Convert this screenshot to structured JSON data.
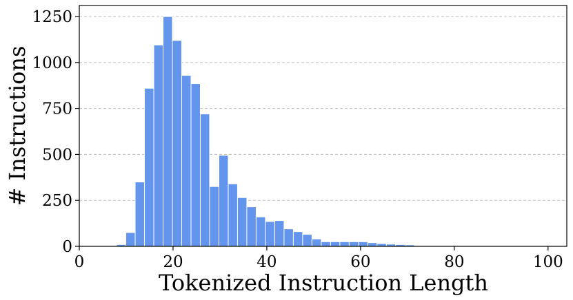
{
  "chart_data": {
    "type": "bar",
    "title": "",
    "xlabel": "Tokenized Instruction Length",
    "ylabel": "# Instructions",
    "xlim": [
      0,
      104
    ],
    "ylim": [
      0,
      1310
    ],
    "xticks": [
      0,
      20,
      40,
      60,
      80,
      100
    ],
    "yticks": [
      0,
      250,
      500,
      750,
      1000,
      1250
    ],
    "grid": "y-dashed",
    "bin_width": 1.985,
    "bin_start": 7.95,
    "bar_color": "#6495ed",
    "values": [
      10,
      75,
      350,
      860,
      1095,
      1250,
      1120,
      930,
      885,
      720,
      325,
      495,
      340,
      265,
      215,
      160,
      135,
      140,
      95,
      80,
      65,
      40,
      25,
      25,
      25,
      25,
      25,
      20,
      15,
      12,
      10,
      8,
      3,
      3,
      2,
      2,
      2,
      1,
      1,
      1,
      0,
      0,
      0,
      0,
      0,
      0
    ]
  }
}
